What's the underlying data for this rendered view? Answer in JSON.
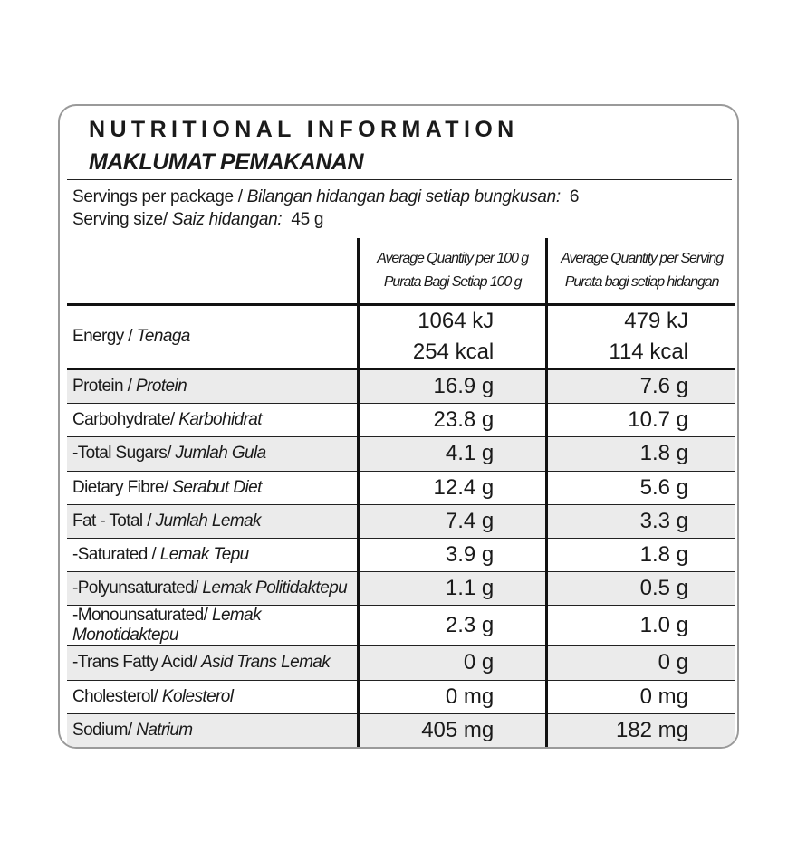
{
  "header": {
    "title": "NUTRITIONAL INFORMATION",
    "subtitle": "MAKLUMAT PEMAKANAN"
  },
  "servings": [
    {
      "label_en": "Servings per package /",
      "label_my": "Bilangan hidangan bagi setiap bungkusan:",
      "value": "6"
    },
    {
      "label_en": "Serving size/",
      "label_my": "Saiz hidangan:",
      "value": "45 g"
    }
  ],
  "table": {
    "columns": [
      [
        "Average Quantity per 100 g",
        "Purata Bagi Setiap 100 g"
      ],
      [
        "Average Quantity per Serving",
        "Purata bagi setiap hidangan"
      ]
    ],
    "rows": [
      {
        "label_en": "Energy /",
        "label_my": "Tenaga",
        "per_100g": [
          "1064 kJ",
          "254 kcal"
        ],
        "per_serving": [
          "479 kJ",
          "114 kcal"
        ]
      },
      {
        "label_en": "Protein /",
        "label_my": "Protein",
        "per_100g": [
          "16.9 g"
        ],
        "per_serving": [
          "7.6 g"
        ]
      },
      {
        "label_en": "Carbohydrate/",
        "label_my": "Karbohidrat",
        "per_100g": [
          "23.8 g"
        ],
        "per_serving": [
          "10.7 g"
        ]
      },
      {
        "label_en": "-Total Sugars/",
        "label_my": "Jumlah Gula",
        "per_100g": [
          "4.1 g"
        ],
        "per_serving": [
          "1.8 g"
        ]
      },
      {
        "label_en": "Dietary Fibre/",
        "label_my": "Serabut Diet",
        "per_100g": [
          "12.4 g"
        ],
        "per_serving": [
          "5.6 g"
        ]
      },
      {
        "label_en": "Fat - Total /",
        "label_my": "Jumlah Lemak",
        "per_100g": [
          "7.4 g"
        ],
        "per_serving": [
          "3.3 g"
        ]
      },
      {
        "label_en": "-Saturated /",
        "label_my": "Lemak Tepu",
        "per_100g": [
          "3.9 g"
        ],
        "per_serving": [
          "1.8 g"
        ]
      },
      {
        "label_en": "-Polyunsaturated/",
        "label_my": "Lemak Politidaktepu",
        "per_100g": [
          "1.1 g"
        ],
        "per_serving": [
          "0.5 g"
        ]
      },
      {
        "label_en": "-Monounsaturated/",
        "label_my": "Lemak Monotidaktepu",
        "per_100g": [
          "2.3 g"
        ],
        "per_serving": [
          "1.0 g"
        ]
      },
      {
        "label_en": "-Trans Fatty Acid/",
        "label_my": "Asid Trans Lemak",
        "per_100g": [
          "0 g"
        ],
        "per_serving": [
          "0 g"
        ]
      },
      {
        "label_en": "Cholesterol/",
        "label_my": "Kolesterol",
        "per_100g": [
          "0 mg"
        ],
        "per_serving": [
          "0 mg"
        ]
      },
      {
        "label_en": "Sodium/",
        "label_my": "Natrium",
        "per_100g": [
          "405 mg"
        ],
        "per_serving": [
          "182 mg"
        ]
      }
    ]
  }
}
